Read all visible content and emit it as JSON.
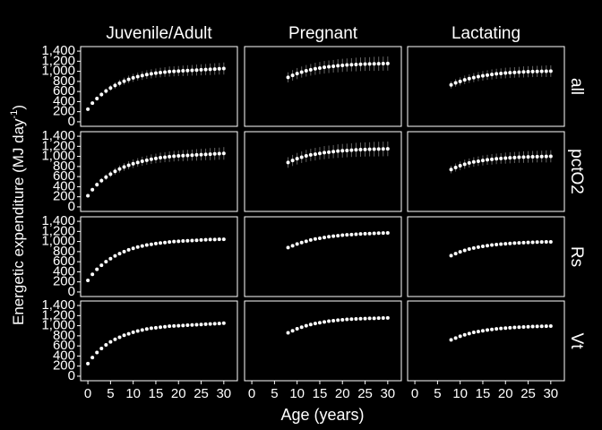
{
  "chart_data": {
    "type": "scatter",
    "xlabel": "Age (years)",
    "ylabel": "Energetic expenditure (MJ day",
    "ylabel_sup": "-1",
    "ylabel_end": ")",
    "xlim": [
      -1.6,
      33
    ],
    "xticks": [
      0,
      5,
      10,
      15,
      20,
      25,
      30
    ],
    "ylim": [
      -90,
      1490
    ],
    "yticks": [
      0,
      200,
      400,
      600,
      800,
      {
        "value": 1000,
        "label": "1,000"
      },
      {
        "value": 1200,
        "label": "1,200"
      },
      {
        "value": 1400,
        "label": "1,400"
      }
    ],
    "point_color": "#ffffff",
    "error_color": "#666666",
    "columns": [
      {
        "label": "Juvenile/Adult",
        "x": [
          0,
          1,
          2,
          3,
          4,
          5,
          6,
          7,
          8,
          9,
          10,
          11,
          12,
          13,
          14,
          15,
          16,
          17,
          18,
          19,
          20,
          21,
          22,
          23,
          24,
          25,
          26,
          27,
          28,
          29,
          30
        ]
      },
      {
        "label": "Pregnant",
        "x": [
          8,
          9,
          10,
          11,
          12,
          13,
          14,
          15,
          16,
          17,
          18,
          19,
          20,
          21,
          22,
          23,
          24,
          25,
          26,
          27,
          28,
          29,
          30
        ]
      },
      {
        "label": "Lactating",
        "x": [
          8,
          9,
          10,
          11,
          12,
          13,
          14,
          15,
          16,
          17,
          18,
          19,
          20,
          21,
          22,
          23,
          24,
          25,
          26,
          27,
          28,
          29,
          30
        ]
      }
    ],
    "rows": [
      {
        "label": "all",
        "panels": [
          {
            "values": [
              250,
              370,
              460,
              540,
              610,
              670,
              720,
              765,
              805,
              840,
              870,
              895,
              915,
              935,
              950,
              965,
              975,
              985,
              995,
              1000,
              1005,
              1010,
              1015,
              1020,
              1025,
              1030,
              1035,
              1040,
              1045,
              1050,
              1055
            ],
            "errors": [
              20,
              30,
              40,
              45,
              50,
              55,
              60,
              65,
              70,
              75,
              80,
              80,
              85,
              85,
              90,
              90,
              95,
              95,
              100,
              100,
              100,
              105,
              105,
              105,
              110,
              110,
              110,
              115,
              115,
              115,
              120
            ]
          },
          {
            "values": [
              880,
              920,
              955,
              985,
              1010,
              1030,
              1050,
              1065,
              1080,
              1090,
              1100,
              1110,
              1118,
              1125,
              1130,
              1135,
              1140,
              1143,
              1146,
              1148,
              1150,
              1152,
              1154
            ],
            "errors": [
              100,
              105,
              110,
              110,
              115,
              115,
              120,
              120,
              125,
              125,
              125,
              130,
              130,
              130,
              130,
              135,
              135,
              135,
              135,
              140,
              140,
              140,
              140
            ]
          },
          {
            "values": [
              730,
              770,
              800,
              830,
              855,
              875,
              895,
              910,
              925,
              938,
              950,
              958,
              966,
              972,
              978,
              983,
              988,
              992,
              995,
              998,
              1000,
              1002,
              1004
            ],
            "errors": [
              70,
              75,
              80,
              85,
              85,
              90,
              90,
              95,
              95,
              100,
              100,
              100,
              105,
              105,
              105,
              105,
              110,
              110,
              110,
              110,
              110,
              115,
              115
            ]
          }
        ]
      },
      {
        "label": "pctO2",
        "panels": [
          {
            "values": [
              220,
              340,
              440,
              520,
              590,
              650,
              705,
              750,
              790,
              825,
              855,
              880,
              905,
              925,
              945,
              960,
              975,
              985,
              995,
              1005,
              1010,
              1015,
              1020,
              1025,
              1030,
              1035,
              1040,
              1045,
              1050,
              1055,
              1060
            ],
            "errors": [
              25,
              35,
              45,
              50,
              55,
              60,
              65,
              70,
              75,
              80,
              85,
              85,
              90,
              90,
              95,
              95,
              100,
              100,
              105,
              105,
              105,
              110,
              110,
              110,
              115,
              115,
              115,
              120,
              120,
              120,
              125
            ]
          },
          {
            "values": [
              880,
              920,
              955,
              985,
              1010,
              1030,
              1045,
              1060,
              1075,
              1085,
              1095,
              1105,
              1112,
              1118,
              1124,
              1130,
              1134,
              1138,
              1141,
              1144,
              1146,
              1148,
              1150
            ],
            "errors": [
              105,
              110,
              115,
              115,
              120,
              120,
              125,
              125,
              130,
              130,
              130,
              135,
              135,
              135,
              135,
              140,
              140,
              140,
              140,
              145,
              145,
              145,
              145
            ]
          },
          {
            "values": [
              740,
              780,
              815,
              845,
              870,
              890,
              905,
              920,
              932,
              942,
              952,
              960,
              966,
              972,
              978,
              983,
              987,
              990,
              993,
              996,
              998,
              1000,
              1002
            ],
            "errors": [
              75,
              80,
              85,
              90,
              90,
              95,
              95,
              100,
              100,
              105,
              105,
              105,
              110,
              110,
              110,
              110,
              115,
              115,
              115,
              115,
              115,
              120,
              120
            ]
          }
        ]
      },
      {
        "label": "Rs",
        "panels": [
          {
            "values": [
              230,
              350,
              450,
              530,
              600,
              660,
              715,
              760,
              800,
              835,
              865,
              890,
              910,
              930,
              945,
              960,
              970,
              980,
              990,
              1000,
              1005,
              1010,
              1015,
              1020,
              1025,
              1030,
              1035,
              1040,
              1040,
              1045,
              1045
            ]
          },
          {
            "values": [
              880,
              915,
              950,
              980,
              1005,
              1030,
              1050,
              1065,
              1080,
              1095,
              1105,
              1115,
              1125,
              1132,
              1138,
              1144,
              1150,
              1155,
              1158,
              1162,
              1165,
              1168,
              1170
            ]
          },
          {
            "values": [
              720,
              760,
              795,
              825,
              850,
              870,
              888,
              905,
              918,
              930,
              940,
              948,
              955,
              962,
              968,
              973,
              978,
              982,
              985,
              988,
              990,
              992,
              994
            ]
          }
        ]
      },
      {
        "label": "Vt",
        "panels": [
          {
            "values": [
              250,
              370,
              470,
              550,
              620,
              680,
              730,
              770,
              810,
              840,
              870,
              895,
              915,
              935,
              950,
              960,
              970,
              980,
              990,
              995,
              1000,
              1005,
              1010,
              1015,
              1020,
              1025,
              1030,
              1035,
              1040,
              1045,
              1050
            ]
          },
          {
            "values": [
              860,
              900,
              940,
              970,
              1000,
              1025,
              1045,
              1060,
              1075,
              1090,
              1100,
              1110,
              1118,
              1125,
              1130,
              1135,
              1140,
              1142,
              1145,
              1147,
              1150,
              1152,
              1154
            ]
          },
          {
            "values": [
              720,
              755,
              790,
              820,
              845,
              868,
              885,
              900,
              915,
              927,
              937,
              946,
              953,
              960,
              966,
              971,
              976,
              980,
              983,
              986,
              989,
              991,
              993
            ]
          }
        ]
      }
    ]
  }
}
